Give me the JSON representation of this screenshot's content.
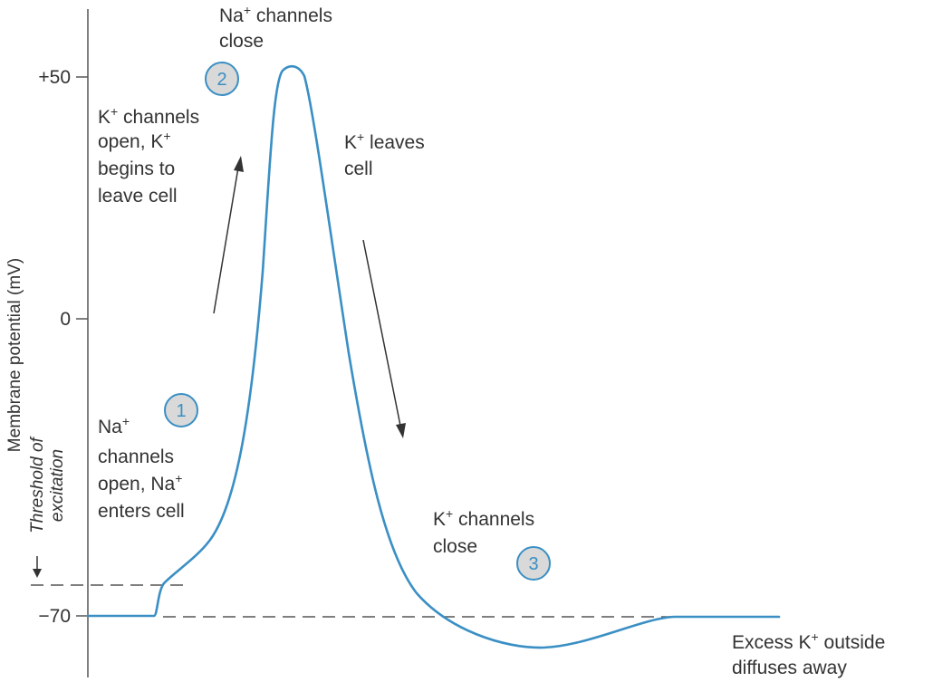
{
  "y_axis": {
    "title": "Membrane potential (mV)",
    "ticks": [
      "+50",
      "0",
      "−70"
    ]
  },
  "threshold": {
    "line1": "Threshold of",
    "line2": "excitation"
  },
  "steps": [
    {
      "number": "1",
      "lines": [
        [
          "Na",
          "+",
          ""
        ],
        [
          "channels",
          "",
          ""
        ],
        [
          "open, Na",
          "+",
          ""
        ],
        [
          "enters cell",
          "",
          ""
        ]
      ]
    },
    {
      "number": "2",
      "lines": [
        [
          "Na",
          "+",
          " channels"
        ],
        [
          "close",
          "",
          ""
        ]
      ]
    },
    {
      "number": "3",
      "lines": [
        [
          "K",
          "+",
          " channels"
        ],
        [
          "close",
          "",
          ""
        ]
      ]
    }
  ],
  "k_open": {
    "lines": [
      [
        "K",
        "+",
        " channels"
      ],
      [
        "open, K",
        "+",
        ""
      ],
      [
        "begins to",
        "",
        ""
      ],
      [
        "leave cell",
        "",
        ""
      ]
    ]
  },
  "k_leaves": {
    "lines": [
      [
        "K",
        "+",
        " leaves"
      ],
      [
        "cell",
        "",
        ""
      ]
    ]
  },
  "excess": {
    "lines": [
      [
        "Excess K",
        "+",
        " outside"
      ],
      [
        "diffuses away",
        "",
        ""
      ]
    ]
  },
  "colors": {
    "curve": "#3a8fc4",
    "text": "#333333",
    "axis": "#555555",
    "circle_fill": "#d9d9d9"
  }
}
